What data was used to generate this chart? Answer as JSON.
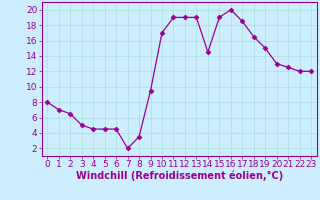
{
  "x": [
    0,
    1,
    2,
    3,
    4,
    5,
    6,
    7,
    8,
    9,
    10,
    11,
    12,
    13,
    14,
    15,
    16,
    17,
    18,
    19,
    20,
    21,
    22,
    23
  ],
  "y": [
    8,
    7,
    6.5,
    5,
    4.5,
    4.5,
    4.5,
    2,
    3.5,
    9.5,
    17,
    19,
    19,
    19,
    14.5,
    19,
    20,
    18.5,
    16.5,
    15,
    13,
    12.5,
    12,
    12
  ],
  "line_color": "#990099",
  "marker": "D",
  "marker_size": 2.5,
  "bg_color": "#cceeff",
  "grid_color": "#aadddd",
  "xlabel": "Windchill (Refroidissement éolien,°C)",
  "xlabel_fontsize": 7,
  "tick_fontsize": 6.5,
  "yticks": [
    2,
    4,
    6,
    8,
    10,
    12,
    14,
    16,
    18,
    20
  ],
  "xticks": [
    0,
    1,
    2,
    3,
    4,
    5,
    6,
    7,
    8,
    9,
    10,
    11,
    12,
    13,
    14,
    15,
    16,
    17,
    18,
    19,
    20,
    21,
    22,
    23
  ],
  "ylim": [
    1,
    21
  ],
  "xlim": [
    -0.5,
    23.5
  ]
}
